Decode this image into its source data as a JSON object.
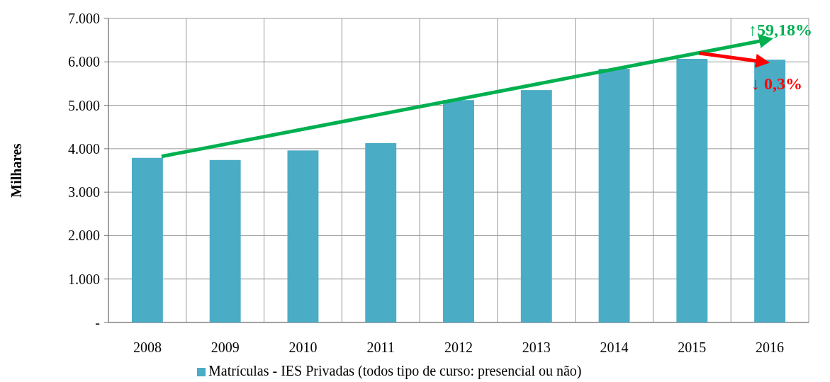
{
  "chart_data": {
    "type": "bar",
    "ylabel": "Milhares",
    "categories": [
      "2008",
      "2009",
      "2010",
      "2011",
      "2012",
      "2013",
      "2014",
      "2015",
      "2016"
    ],
    "series": [
      {
        "name": "Matrículas - IES Privadas (todos tipo de curso: presencial ou não)",
        "color": "#4bacc6",
        "values": [
          3790,
          3740,
          3960,
          4130,
          5120,
          5350,
          5840,
          6070,
          6050
        ]
      }
    ],
    "ylim": [
      0,
      7000
    ],
    "yticks": [
      {
        "value": 0,
        "label": "-"
      },
      {
        "value": 1000,
        "label": "1.000"
      },
      {
        "value": 2000,
        "label": "2.000"
      },
      {
        "value": 3000,
        "label": "3.000"
      },
      {
        "value": 4000,
        "label": "4.000"
      },
      {
        "value": 5000,
        "label": "5.000"
      },
      {
        "value": 6000,
        "label": "6.000"
      },
      {
        "value": 7000,
        "label": "7.000"
      }
    ],
    "grid": true,
    "legend": "bottom",
    "annotations": [
      "↑59,18%",
      "↓ 0,3%"
    ]
  }
}
